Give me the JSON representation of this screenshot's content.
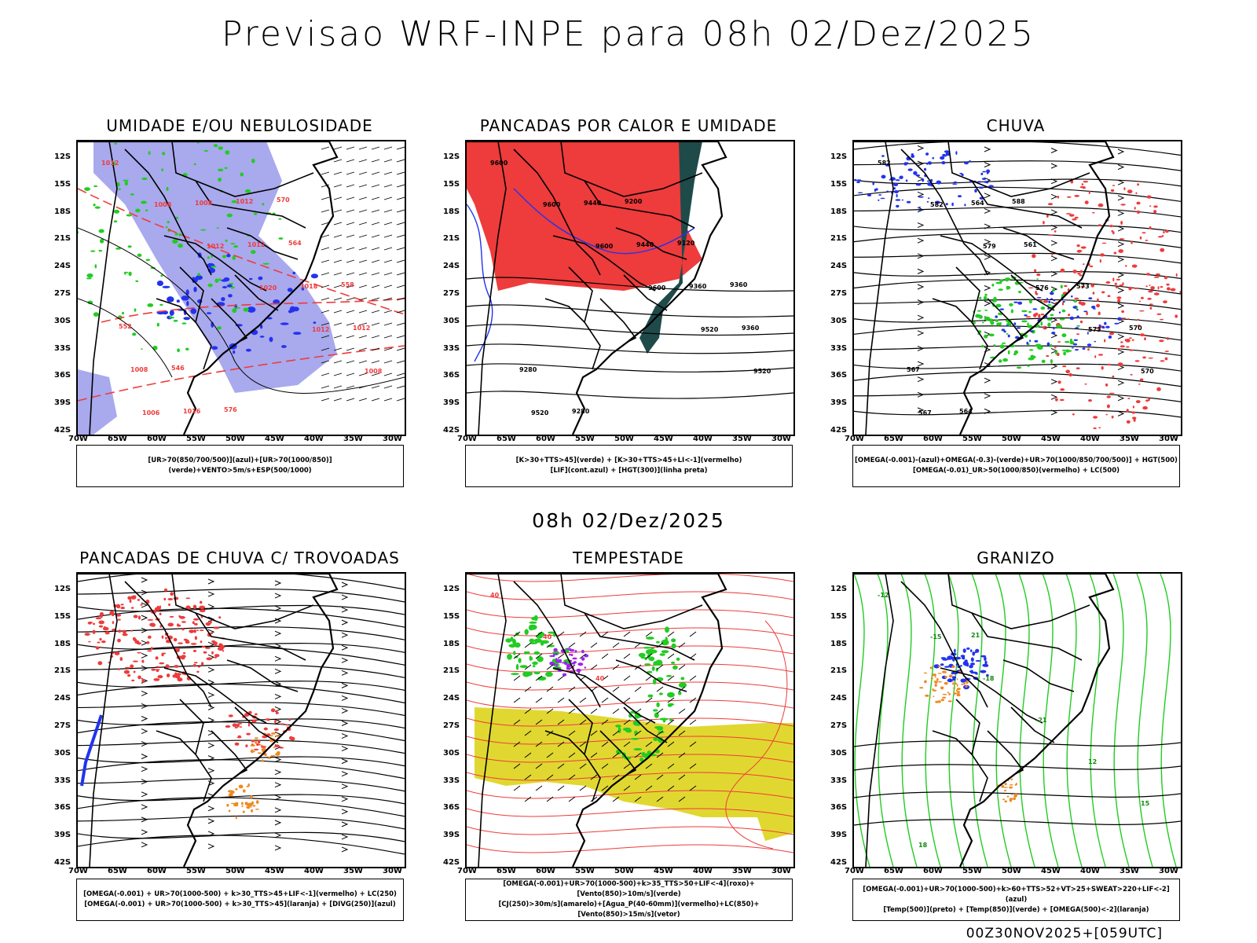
{
  "title": "Previsao WRF-INPE  para 08h 02/Dez/2025",
  "subtitle": "08h 02/Dez/2025",
  "footer": "00Z30NOV2025+[059UTC]",
  "lat_labels": [
    "12S",
    "15S",
    "18S",
    "21S",
    "24S",
    "27S",
    "30S",
    "33S",
    "36S",
    "39S",
    "42S"
  ],
  "lon_labels": [
    "70W",
    "65W",
    "60W",
    "55W",
    "50W",
    "45W",
    "40W",
    "35W",
    "30W"
  ],
  "panels": [
    {
      "title": "UMIDADE E/OU NEBULOSIDADE",
      "legend": [
        "[UR>70(850/700/500)](azul)+[UR>70(1000/850)](verde)+VENTO>5m/s+ESP(500/1000)"
      ],
      "contour_labels": [
        "1012",
        "1008",
        "1012",
        "1020",
        "1012",
        "1008",
        "1006",
        "1008",
        "1012",
        "1018",
        "1012",
        "1008",
        "1016",
        "1012",
        "564",
        "558",
        "552",
        "546",
        "576",
        "570"
      ]
    },
    {
      "title": "PANCADAS POR CALOR E UMIDADE",
      "legend": [
        "[K>30+TTS>45](verde) + [K>30+TTS>45+LI<-1](vermelho)",
        "[LIF](cont.azul) + [HGT(300)](linha preta)"
      ],
      "contour_labels": [
        "9600",
        "9600",
        "9600",
        "9600",
        "9520",
        "9520",
        "9520",
        "9440",
        "9440",
        "9360",
        "9360",
        "9280",
        "9280",
        "9200",
        "9120",
        "9360"
      ]
    },
    {
      "title": "CHUVA",
      "legend": [
        "[OMEGA(-0.001)-(azul)+OMEGA(-0.3)-(verde)+UR>70(1000/850/700/500)] + HGT(500)",
        "[OMEGA(-0.01)_UR>50(1000/850)(vermelho) + LC(500)"
      ],
      "contour_labels": [
        "582",
        "582",
        "579",
        "576",
        "573",
        "570",
        "567",
        "564",
        "561",
        "573",
        "570",
        "567",
        "564",
        "588"
      ]
    },
    {
      "title": "PANCADAS DE CHUVA C/ TROVOADAS",
      "legend": [
        "[OMEGA(-0.001) + UR>70(1000-500) + k>30_TTS>45+LIF<-1](vermelho) + LC(250)",
        "[OMEGA(-0.001) + UR>70(1000-500) + k>30_TTS>45](laranja) + [DIVG(250)](azul)"
      ],
      "contour_labels": []
    },
    {
      "title": "TEMPESTADE",
      "legend": [
        "[OMEGA(-0.001)+UR>70(1000-500)+k>35_TTS>50+LIF<-4](roxo)+[Vento(850)>10m/s](verde)",
        "[CJ(250)>30m/s](amarelo)+[Agua_P(40-60mm)](vermelho)+LC(850)+[Vento(850)>15m/s](vetor)"
      ],
      "contour_labels": [
        "40",
        "40",
        "40"
      ]
    },
    {
      "title": "GRANIZO",
      "legend": [
        "[OMEGA(-0.001)+UR>70(1000-500)+k>60+TTS>52+VT>25+SWEAT>220+LIF<-2](azul)",
        "[Temp(500)](preto) + [Temp(850)](verde) + [OMEGA(500)<-2](laranja)"
      ],
      "contour_labels": [
        "-12",
        "-15",
        "-18",
        "-21",
        "12",
        "15",
        "18",
        "21"
      ]
    }
  ],
  "colors": {
    "blue_fill": "#a9a9ee",
    "blue": "#2233ee",
    "green": "#22cc22",
    "red": "#ee3b3b",
    "dark_teal": "#1f4a4a",
    "orange": "#ee8a22",
    "yellow": "#e0d830",
    "purple": "#a020f0"
  }
}
